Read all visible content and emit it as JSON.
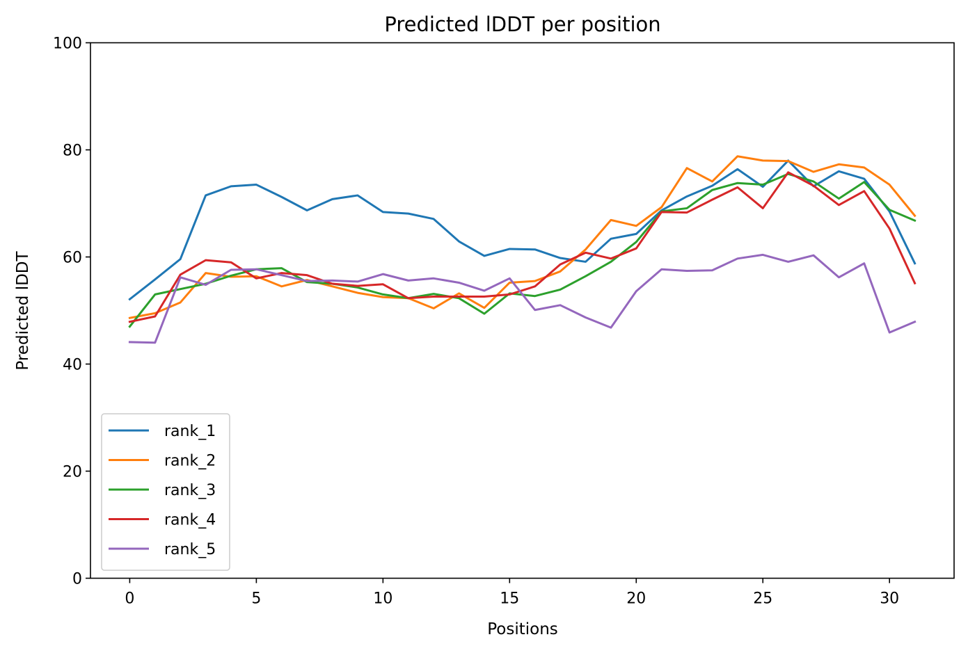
{
  "chart_data": {
    "type": "line",
    "title": "Predicted lDDT per position",
    "xlabel": "Positions",
    "ylabel": "Predicted lDDT",
    "xlim": [
      -1.55,
      32.55
    ],
    "ylim": [
      0,
      100
    ],
    "xticks": [
      0,
      5,
      10,
      15,
      20,
      25,
      30
    ],
    "yticks": [
      0,
      20,
      40,
      60,
      80,
      100
    ],
    "grid": false,
    "legend_position": "lower-left",
    "x": [
      0,
      1,
      2,
      3,
      4,
      5,
      6,
      7,
      8,
      9,
      10,
      11,
      12,
      13,
      14,
      15,
      16,
      17,
      18,
      19,
      20,
      21,
      22,
      23,
      24,
      25,
      26,
      27,
      28,
      29,
      30,
      31
    ],
    "series": [
      {
        "name": "rank_1",
        "color": "#1f77b4",
        "values": [
          52.1,
          55.8,
          59.6,
          71.5,
          73.2,
          73.5,
          71.2,
          68.7,
          70.8,
          71.5,
          68.4,
          68.1,
          67.1,
          62.9,
          60.2,
          61.5,
          61.4,
          59.8,
          59.1,
          63.4,
          64.3,
          68.7,
          71.3,
          73.3,
          76.4,
          73.1,
          78.0,
          73.2,
          76.0,
          74.6,
          68.5,
          58.8
        ]
      },
      {
        "name": "rank_2",
        "color": "#ff7f0e",
        "values": [
          48.6,
          49.5,
          51.5,
          57.0,
          56.3,
          56.4,
          54.5,
          55.7,
          54.5,
          53.3,
          52.5,
          52.3,
          50.4,
          53.2,
          50.5,
          55.2,
          55.5,
          57.3,
          61.4,
          66.9,
          65.8,
          69.3,
          76.6,
          74.1,
          78.8,
          78.0,
          77.9,
          75.9,
          77.3,
          76.7,
          73.5,
          67.7
        ]
      },
      {
        "name": "rank_3",
        "color": "#2ca02c",
        "values": [
          47.0,
          53.0,
          54.0,
          55.0,
          56.5,
          57.7,
          57.9,
          55.3,
          55.0,
          54.3,
          53.0,
          52.3,
          53.1,
          52.3,
          49.4,
          53.2,
          52.7,
          53.9,
          56.4,
          59.1,
          62.8,
          68.5,
          69.1,
          72.5,
          73.8,
          73.5,
          75.5,
          74.1,
          70.9,
          74.0,
          68.8,
          66.8
        ]
      },
      {
        "name": "rank_4",
        "color": "#d62728",
        "values": [
          47.9,
          48.9,
          56.7,
          59.4,
          59.0,
          56.0,
          57.0,
          56.6,
          55.0,
          54.6,
          54.9,
          52.3,
          52.6,
          52.6,
          52.6,
          53.0,
          54.5,
          58.6,
          60.8,
          59.7,
          61.6,
          68.4,
          68.3,
          70.7,
          73.0,
          69.1,
          75.8,
          73.3,
          69.7,
          72.3,
          65.3,
          55.1
        ]
      },
      {
        "name": "rank_5",
        "color": "#9467bd",
        "values": [
          44.1,
          44.0,
          56.2,
          54.8,
          57.6,
          57.7,
          56.6,
          55.5,
          55.6,
          55.4,
          56.8,
          55.6,
          56.0,
          55.2,
          53.7,
          56.0,
          50.1,
          51.0,
          48.7,
          46.8,
          53.6,
          57.7,
          57.4,
          57.5,
          59.7,
          60.4,
          59.1,
          60.3,
          56.2,
          58.8,
          45.9,
          47.9
        ]
      }
    ]
  }
}
